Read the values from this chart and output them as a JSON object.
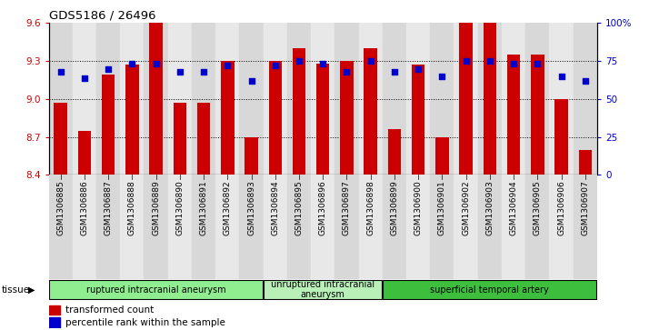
{
  "title": "GDS5186 / 26496",
  "samples": [
    "GSM1306885",
    "GSM1306886",
    "GSM1306887",
    "GSM1306888",
    "GSM1306889",
    "GSM1306890",
    "GSM1306891",
    "GSM1306892",
    "GSM1306893",
    "GSM1306894",
    "GSM1306895",
    "GSM1306896",
    "GSM1306897",
    "GSM1306898",
    "GSM1306899",
    "GSM1306900",
    "GSM1306901",
    "GSM1306902",
    "GSM1306903",
    "GSM1306904",
    "GSM1306905",
    "GSM1306906",
    "GSM1306907"
  ],
  "transformed_count": [
    8.97,
    8.75,
    9.19,
    9.27,
    9.6,
    8.97,
    8.97,
    9.3,
    8.7,
    9.3,
    9.4,
    9.28,
    9.3,
    9.4,
    8.76,
    9.27,
    8.7,
    9.6,
    9.6,
    9.35,
    9.35,
    9.0,
    8.6
  ],
  "percentile_rank": [
    68,
    64,
    70,
    73,
    73,
    68,
    68,
    72,
    62,
    72,
    75,
    73,
    68,
    75,
    68,
    70,
    65,
    75,
    75,
    73,
    73,
    65,
    62
  ],
  "groups": [
    {
      "label": "ruptured intracranial aneurysm",
      "start": 0,
      "end": 9,
      "color": "#90ee90"
    },
    {
      "label": "unruptured intracranial\naneurysm",
      "start": 9,
      "end": 14,
      "color": "#b8f0b8"
    },
    {
      "label": "superficial temporal artery",
      "start": 14,
      "end": 23,
      "color": "#3dbe3d"
    }
  ],
  "ylim_left": [
    8.4,
    9.6
  ],
  "ylim_right": [
    0,
    100
  ],
  "yticks_left": [
    8.4,
    8.7,
    9.0,
    9.3,
    9.6
  ],
  "yticks_right": [
    0,
    25,
    50,
    75,
    100
  ],
  "ytick_labels_right": [
    "0",
    "25",
    "50",
    "75",
    "100%"
  ],
  "bar_color": "#cc0000",
  "dot_color": "#0000cc",
  "tissue_label": "tissue"
}
